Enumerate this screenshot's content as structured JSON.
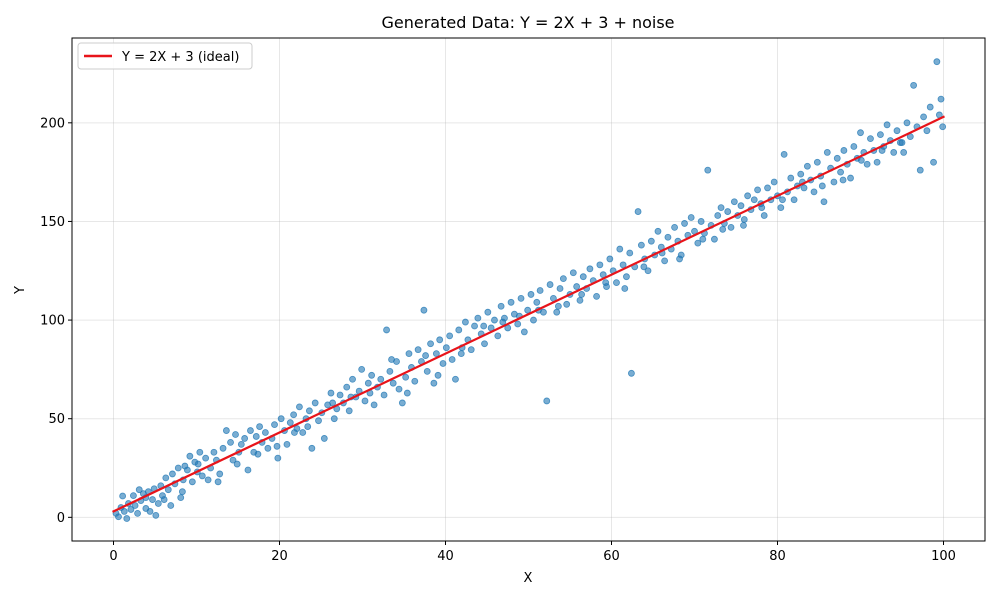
{
  "chart_data": {
    "type": "scatter",
    "title": "Generated Data: Y = 2X + 3 + noise",
    "xlabel": "X",
    "ylabel": "Y",
    "xlim": [
      -5,
      105
    ],
    "ylim": [
      -12,
      243
    ],
    "xticks": [
      0,
      20,
      40,
      60,
      80,
      100
    ],
    "yticks": [
      0,
      50,
      100,
      150,
      200
    ],
    "x_tick_labels": [
      "0",
      "20",
      "40",
      "60",
      "80",
      "100"
    ],
    "y_tick_labels": [
      "0",
      "50",
      "100",
      "150",
      "200"
    ],
    "grid": true,
    "legend_position": "top-left",
    "lines": [
      {
        "name": "Y = 2X + 3 (ideal)",
        "color": "#e8141a",
        "x": [
          0,
          100
        ],
        "y": [
          3,
          203
        ]
      }
    ],
    "scatter": {
      "color": "#1f77b4",
      "points": [
        [
          0.3,
          2
        ],
        [
          0.6,
          0.3
        ],
        [
          0.9,
          5
        ],
        [
          1.1,
          10.8
        ],
        [
          1.3,
          3
        ],
        [
          1.6,
          -0.6
        ],
        [
          1.8,
          7
        ],
        [
          2.1,
          4
        ],
        [
          2.4,
          11
        ],
        [
          2.6,
          6
        ],
        [
          2.9,
          2
        ],
        [
          3.1,
          14
        ],
        [
          3.3,
          8.5
        ],
        [
          3.6,
          12
        ],
        [
          3.9,
          10
        ],
        [
          4.2,
          13
        ],
        [
          4.4,
          3
        ],
        [
          4.7,
          9
        ],
        [
          4.9,
          14.5
        ],
        [
          5.1,
          1
        ],
        [
          5.4,
          7
        ],
        [
          5.7,
          16
        ],
        [
          5.9,
          11
        ],
        [
          6.3,
          20
        ],
        [
          6.6,
          14
        ],
        [
          6.9,
          6
        ],
        [
          7.1,
          22
        ],
        [
          7.4,
          17
        ],
        [
          7.8,
          25
        ],
        [
          8.1,
          10
        ],
        [
          8.4,
          19
        ],
        [
          8.6,
          26
        ],
        [
          8.9,
          24
        ],
        [
          9.2,
          31
        ],
        [
          9.5,
          18
        ],
        [
          9.8,
          28
        ],
        [
          10.1,
          23
        ],
        [
          10.4,
          33
        ],
        [
          10.7,
          21
        ],
        [
          11.1,
          30
        ],
        [
          11.4,
          19
        ],
        [
          11.7,
          25
        ],
        [
          12.1,
          33
        ],
        [
          12.4,
          29
        ],
        [
          12.8,
          22
        ],
        [
          13.2,
          35
        ],
        [
          13.6,
          44
        ],
        [
          14.1,
          38
        ],
        [
          14.4,
          29
        ],
        [
          14.7,
          42
        ],
        [
          15.1,
          33
        ],
        [
          15.4,
          37
        ],
        [
          15.8,
          40
        ],
        [
          16.2,
          24
        ],
        [
          16.5,
          44
        ],
        [
          16.9,
          33
        ],
        [
          17.2,
          41
        ],
        [
          17.6,
          46
        ],
        [
          17.9,
          38
        ],
        [
          18.3,
          43
        ],
        [
          18.6,
          35
        ],
        [
          19.1,
          40
        ],
        [
          19.4,
          47
        ],
        [
          19.8,
          30
        ],
        [
          20.2,
          50
        ],
        [
          20.6,
          44
        ],
        [
          20.9,
          37
        ],
        [
          21.3,
          48
        ],
        [
          21.7,
          52
        ],
        [
          22.1,
          45
        ],
        [
          22.4,
          56
        ],
        [
          22.8,
          43
        ],
        [
          23.2,
          50
        ],
        [
          23.6,
          54
        ],
        [
          23.9,
          35
        ],
        [
          24.3,
          58
        ],
        [
          24.7,
          49
        ],
        [
          25.1,
          53
        ],
        [
          25.4,
          40
        ],
        [
          25.8,
          57
        ],
        [
          26.2,
          63
        ],
        [
          26.6,
          50
        ],
        [
          26.9,
          55
        ],
        [
          27.3,
          62
        ],
        [
          27.7,
          58
        ],
        [
          28.1,
          66
        ],
        [
          28.4,
          54
        ],
        [
          28.8,
          70
        ],
        [
          29.2,
          61
        ],
        [
          29.6,
          64
        ],
        [
          29.9,
          75
        ],
        [
          30.3,
          59
        ],
        [
          30.7,
          68
        ],
        [
          31.1,
          72
        ],
        [
          31.4,
          57
        ],
        [
          31.8,
          66
        ],
        [
          32.2,
          70
        ],
        [
          32.6,
          62
        ],
        [
          32.9,
          95
        ],
        [
          33.3,
          74
        ],
        [
          33.7,
          68
        ],
        [
          34.1,
          79
        ],
        [
          34.4,
          65
        ],
        [
          34.8,
          58
        ],
        [
          35.2,
          71
        ],
        [
          35.6,
          83
        ],
        [
          35.9,
          76
        ],
        [
          36.3,
          69
        ],
        [
          36.7,
          85
        ],
        [
          37.1,
          79
        ],
        [
          37.4,
          105
        ],
        [
          37.8,
          74
        ],
        [
          38.2,
          88
        ],
        [
          38.6,
          68
        ],
        [
          38.9,
          83
        ],
        [
          39.3,
          90
        ],
        [
          39.7,
          78
        ],
        [
          40.1,
          86
        ],
        [
          40.5,
          92
        ],
        [
          40.8,
          80
        ],
        [
          41.2,
          70
        ],
        [
          41.6,
          95
        ],
        [
          42,
          86
        ],
        [
          42.4,
          99
        ],
        [
          42.7,
          90
        ],
        [
          43.1,
          85
        ],
        [
          43.5,
          97
        ],
        [
          43.9,
          101
        ],
        [
          44.3,
          93
        ],
        [
          44.7,
          88
        ],
        [
          45.1,
          104
        ],
        [
          45.5,
          96
        ],
        [
          45.9,
          100
        ],
        [
          46.3,
          92
        ],
        [
          46.7,
          107
        ],
        [
          47.1,
          101
        ],
        [
          47.5,
          96
        ],
        [
          47.9,
          109
        ],
        [
          48.3,
          103
        ],
        [
          48.7,
          98
        ],
        [
          49.1,
          111
        ],
        [
          49.5,
          94
        ],
        [
          49.9,
          105
        ],
        [
          50.3,
          113
        ],
        [
          50.6,
          100
        ],
        [
          51,
          109
        ],
        [
          51.4,
          115
        ],
        [
          51.8,
          104
        ],
        [
          52.2,
          59
        ],
        [
          52.6,
          118
        ],
        [
          53,
          111
        ],
        [
          53.4,
          104
        ],
        [
          53.8,
          116
        ],
        [
          54.2,
          121
        ],
        [
          54.6,
          108
        ],
        [
          55,
          113
        ],
        [
          55.4,
          124
        ],
        [
          55.8,
          117
        ],
        [
          56.2,
          110
        ],
        [
          56.6,
          122
        ],
        [
          57,
          116
        ],
        [
          57.4,
          126
        ],
        [
          57.8,
          120
        ],
        [
          58.2,
          112
        ],
        [
          58.6,
          128
        ],
        [
          59,
          123
        ],
        [
          59.4,
          117
        ],
        [
          59.8,
          131
        ],
        [
          60.2,
          125
        ],
        [
          60.6,
          119
        ],
        [
          61,
          136
        ],
        [
          61.4,
          128
        ],
        [
          61.8,
          122
        ],
        [
          62.2,
          134
        ],
        [
          62.4,
          73
        ],
        [
          62.8,
          127
        ],
        [
          63.2,
          155
        ],
        [
          63.6,
          138
        ],
        [
          64,
          131
        ],
        [
          64.4,
          125
        ],
        [
          64.8,
          140
        ],
        [
          65.2,
          133
        ],
        [
          65.6,
          145
        ],
        [
          66,
          137
        ],
        [
          66.4,
          130
        ],
        [
          66.8,
          142
        ],
        [
          67.2,
          136
        ],
        [
          67.6,
          147
        ],
        [
          68,
          140
        ],
        [
          68.4,
          133
        ],
        [
          68.8,
          149
        ],
        [
          69.2,
          143
        ],
        [
          69.6,
          152
        ],
        [
          70,
          145
        ],
        [
          70.4,
          139
        ],
        [
          70.8,
          150
        ],
        [
          71.2,
          144
        ],
        [
          71.6,
          176
        ],
        [
          72,
          148
        ],
        [
          72.4,
          141
        ],
        [
          72.8,
          153
        ],
        [
          73.2,
          157
        ],
        [
          73.6,
          149
        ],
        [
          74,
          155
        ],
        [
          74.4,
          147
        ],
        [
          74.8,
          160
        ],
        [
          75.2,
          153
        ],
        [
          75.6,
          158
        ],
        [
          76,
          151
        ],
        [
          76.4,
          163
        ],
        [
          76.8,
          156
        ],
        [
          77.2,
          161
        ],
        [
          77.6,
          166
        ],
        [
          78,
          159
        ],
        [
          78.4,
          153
        ],
        [
          78.8,
          167
        ],
        [
          79.2,
          161
        ],
        [
          79.6,
          170
        ],
        [
          80,
          163
        ],
        [
          80.4,
          157
        ],
        [
          80.8,
          184
        ],
        [
          81.2,
          165
        ],
        [
          81.6,
          172
        ],
        [
          82,
          161
        ],
        [
          82.4,
          168
        ],
        [
          82.8,
          174
        ],
        [
          83.2,
          167
        ],
        [
          83.6,
          178
        ],
        [
          84,
          171
        ],
        [
          84.4,
          165
        ],
        [
          84.8,
          180
        ],
        [
          85.2,
          173
        ],
        [
          85.6,
          160
        ],
        [
          86,
          185
        ],
        [
          86.4,
          177
        ],
        [
          86.8,
          170
        ],
        [
          87.2,
          182
        ],
        [
          87.6,
          175
        ],
        [
          88,
          186
        ],
        [
          88.4,
          179
        ],
        [
          88.8,
          172
        ],
        [
          89.2,
          188
        ],
        [
          89.6,
          182
        ],
        [
          90,
          195
        ],
        [
          90.4,
          185
        ],
        [
          90.8,
          179
        ],
        [
          91.2,
          192
        ],
        [
          91.6,
          186
        ],
        [
          92,
          180
        ],
        [
          92.4,
          194
        ],
        [
          92.8,
          188
        ],
        [
          93.2,
          199
        ],
        [
          93.6,
          191
        ],
        [
          94,
          185
        ],
        [
          94.4,
          196
        ],
        [
          94.8,
          190
        ],
        [
          95.2,
          185
        ],
        [
          95.6,
          200
        ],
        [
          96,
          193
        ],
        [
          96.4,
          219
        ],
        [
          96.8,
          198
        ],
        [
          97.2,
          176
        ],
        [
          97.6,
          203
        ],
        [
          98,
          196
        ],
        [
          98.4,
          208
        ],
        [
          98.8,
          180
        ],
        [
          99.2,
          231
        ],
        [
          99.5,
          204
        ],
        [
          99.7,
          212
        ],
        [
          99.9,
          198
        ],
        [
          3.9,
          4.5
        ],
        [
          6.1,
          9
        ],
        [
          8.3,
          13
        ],
        [
          10.2,
          27
        ],
        [
          12.6,
          18
        ],
        [
          14.9,
          27
        ],
        [
          17.4,
          32
        ],
        [
          19.7,
          36
        ],
        [
          21.8,
          43
        ],
        [
          23.4,
          46
        ],
        [
          26.4,
          58
        ],
        [
          28.6,
          61
        ],
        [
          30.9,
          63
        ],
        [
          33.5,
          80
        ],
        [
          35.4,
          63
        ],
        [
          37.6,
          82
        ],
        [
          39.1,
          72
        ],
        [
          41.9,
          83
        ],
        [
          44.6,
          97
        ],
        [
          46.9,
          99
        ],
        [
          48.9,
          102
        ],
        [
          51.2,
          105
        ],
        [
          53.6,
          107
        ],
        [
          56.4,
          113
        ],
        [
          59.3,
          119
        ],
        [
          61.6,
          116
        ],
        [
          63.9,
          127
        ],
        [
          66.1,
          134
        ],
        [
          68.2,
          131
        ],
        [
          71,
          141
        ],
        [
          73.4,
          146
        ],
        [
          75.9,
          148
        ],
        [
          78.1,
          157
        ],
        [
          80.6,
          161
        ],
        [
          83,
          170
        ],
        [
          85.4,
          168
        ],
        [
          87.9,
          171
        ],
        [
          90.1,
          181
        ],
        [
          92.6,
          186
        ],
        [
          95,
          190
        ]
      ]
    }
  }
}
